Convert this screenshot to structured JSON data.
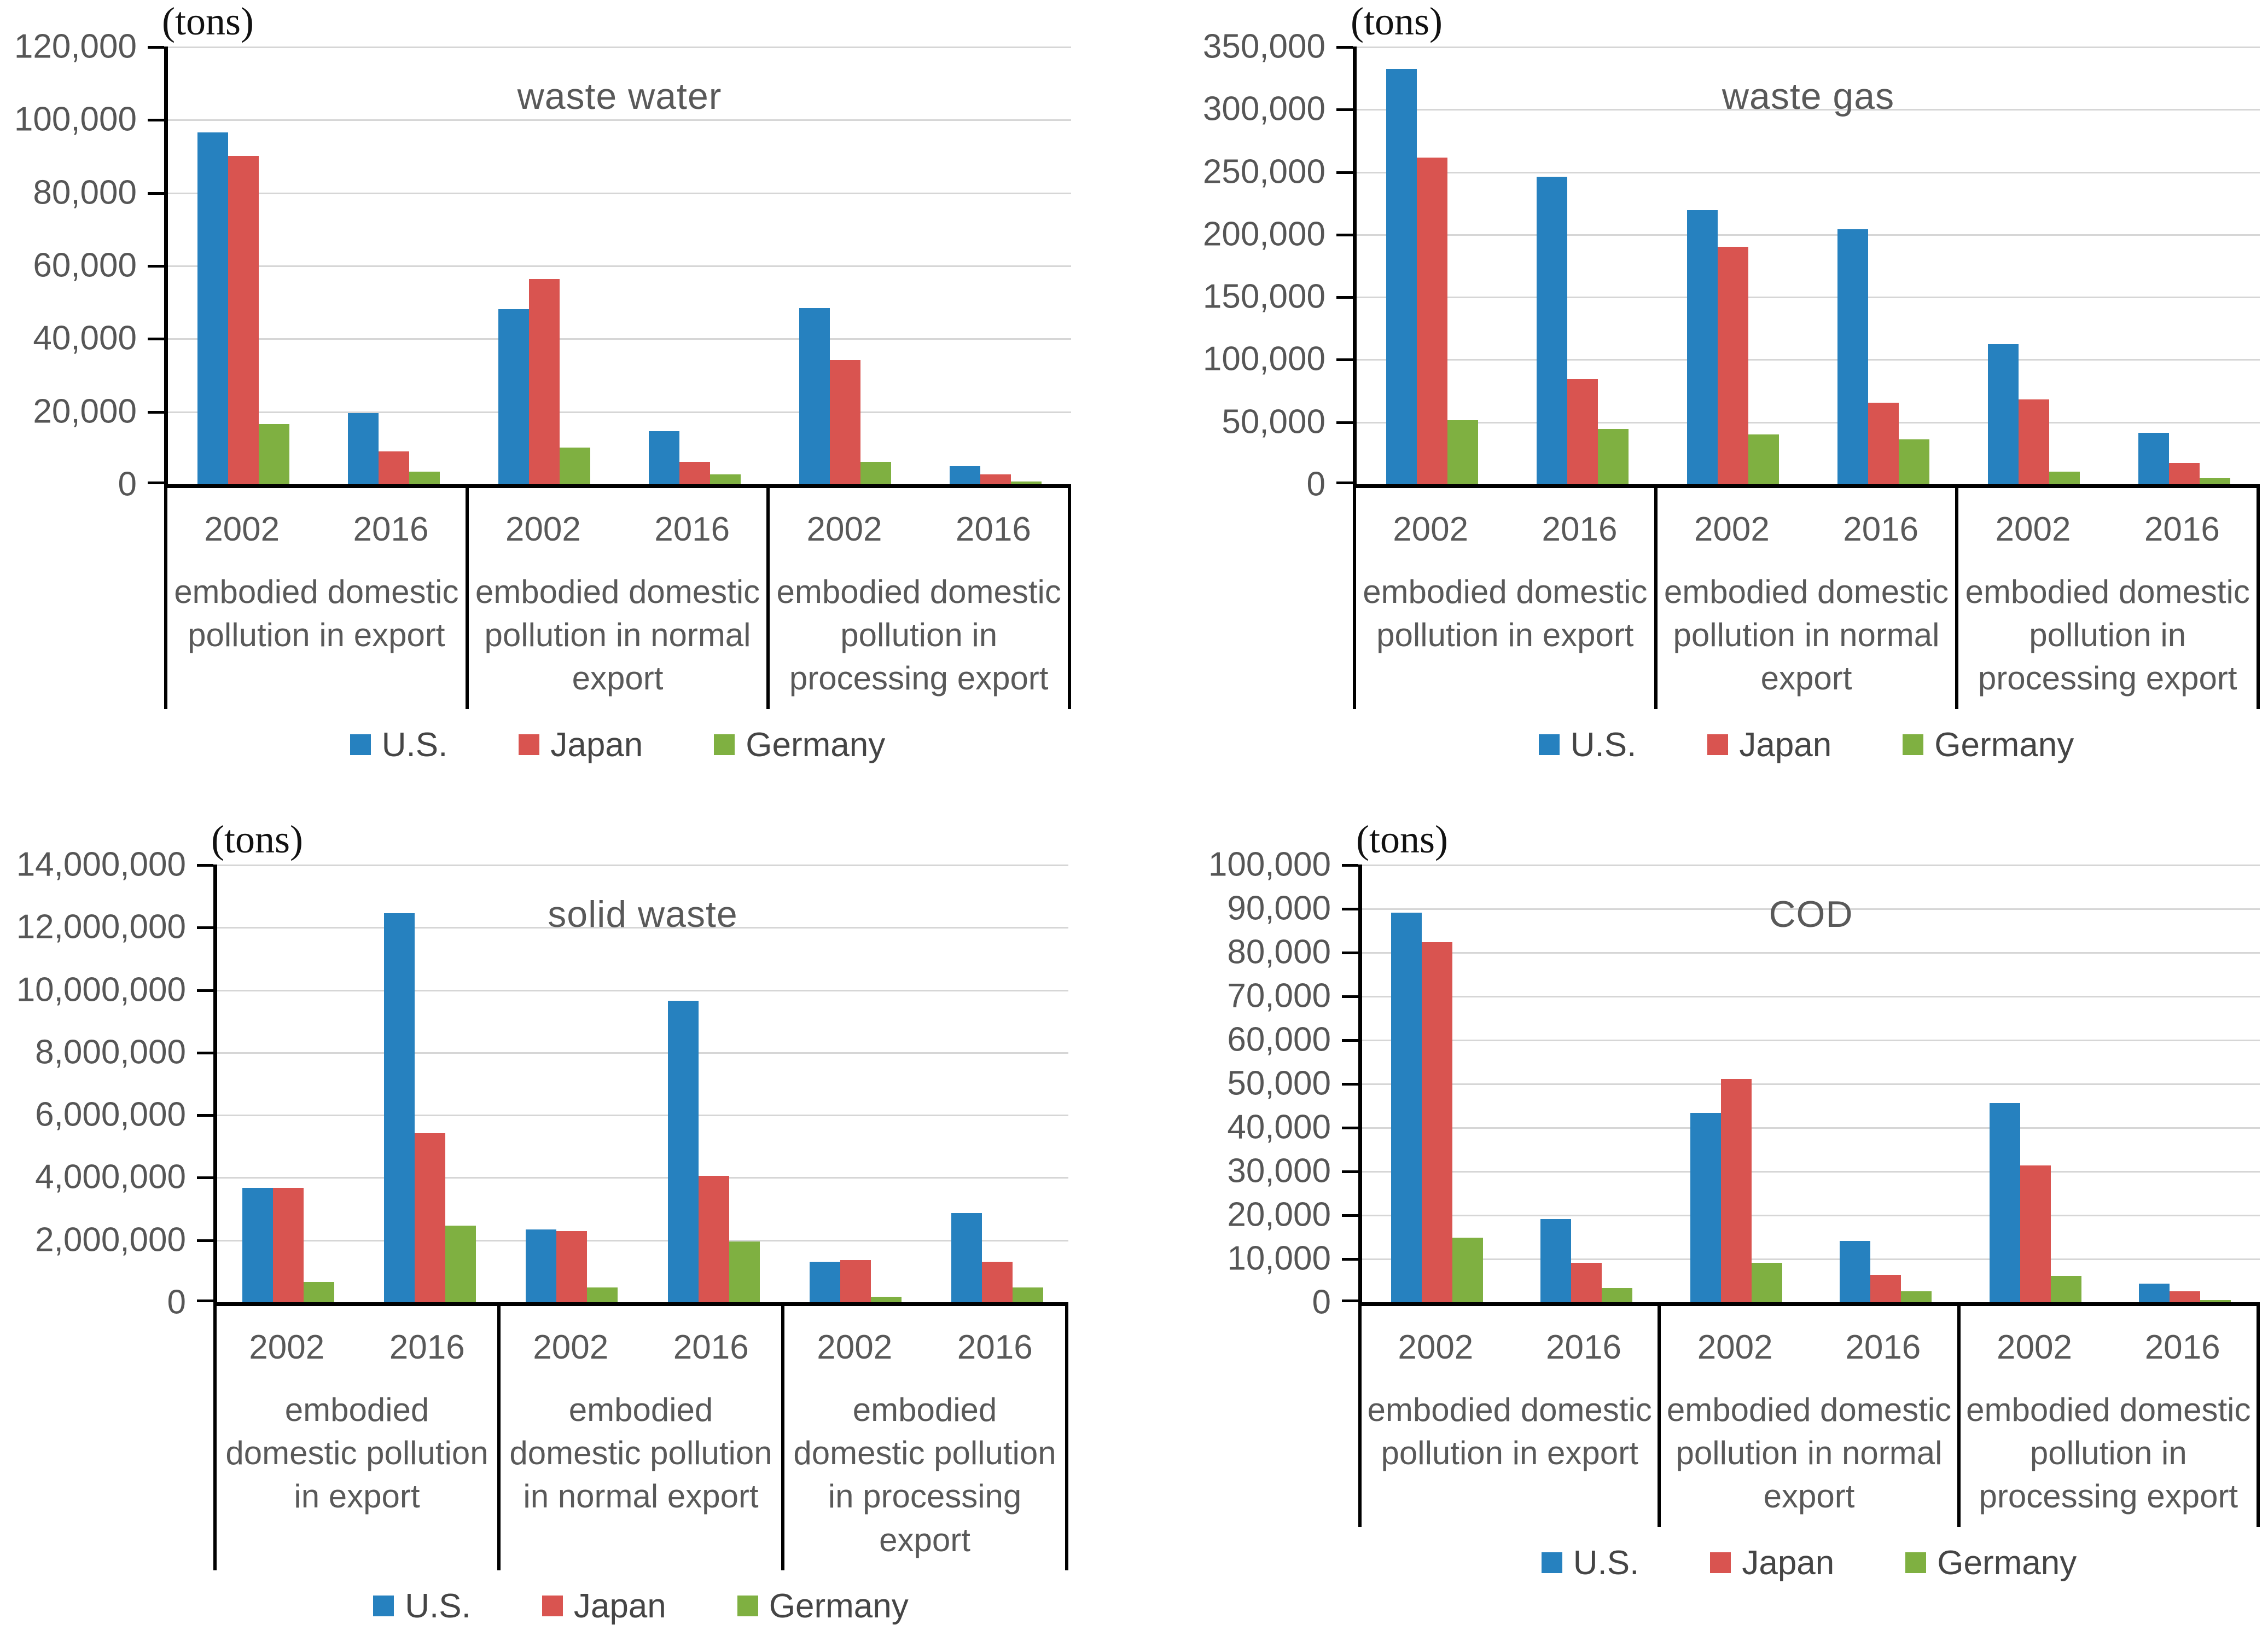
{
  "figure": {
    "background": "#ffffff",
    "colors": {
      "us_blue": "#2681BF",
      "japan_red": "#D95450",
      "germany_green": "#7FB041"
    }
  },
  "chart_data": [
    {
      "type": "bar",
      "title": "waste water",
      "unit_label": "(tons)",
      "ylim": [
        0,
        120000
      ],
      "y_ticks": [
        "0",
        "20,000",
        "40,000",
        "60,000",
        "80,000",
        "100,000",
        "120,000"
      ],
      "grid": true,
      "legend_position": "bottom",
      "categories": [
        "embodied domestic pollution in export",
        "embodied domestic pollution in normal export",
        "embodied domestic pollution in processing export"
      ],
      "years": [
        "2002",
        "2016"
      ],
      "cluster_order": [
        "export 2002",
        "export 2016",
        "normal export 2002",
        "normal export 2016",
        "processing export 2002",
        "processing export 2016"
      ],
      "series": [
        {
          "name": "U.S.",
          "color": "#2681BF",
          "values": [
            96500,
            19500,
            48000,
            14500,
            48300,
            5000
          ]
        },
        {
          "name": "Japan",
          "color": "#D95450",
          "values": [
            90000,
            9000,
            56200,
            6200,
            34000,
            2700
          ]
        },
        {
          "name": "Germany",
          "color": "#7FB041",
          "values": [
            16500,
            3500,
            10000,
            2700,
            6200,
            800
          ]
        }
      ]
    },
    {
      "type": "bar",
      "title": "waste gas",
      "unit_label": "(tons)",
      "ylim": [
        0,
        350000
      ],
      "y_ticks": [
        "0",
        "50,000",
        "100,000",
        "150,000",
        "200,000",
        "250,000",
        "300,000",
        "350,000"
      ],
      "grid": true,
      "legend_position": "bottom",
      "categories": [
        "embodied domestic pollution in export",
        "embodied domestic pollution in normal export",
        "embodied domestic pollution in processing export"
      ],
      "years": [
        "2002",
        "2016"
      ],
      "cluster_order": [
        "export 2002",
        "export 2016",
        "normal export 2002",
        "normal export 2016",
        "processing export 2002",
        "processing export 2016"
      ],
      "series": [
        {
          "name": "U.S.",
          "color": "#2681BF",
          "values": [
            332000,
            246000,
            219000,
            204000,
            112000,
            41000
          ]
        },
        {
          "name": "Japan",
          "color": "#D95450",
          "values": [
            261000,
            84000,
            190000,
            65000,
            68000,
            17000
          ]
        },
        {
          "name": "Germany",
          "color": "#7FB041",
          "values": [
            51000,
            44000,
            40000,
            36000,
            10000,
            5000
          ]
        }
      ]
    },
    {
      "type": "bar",
      "title": "solid waste",
      "unit_label": "(tons)",
      "ylim": [
        0,
        14000000
      ],
      "y_ticks": [
        "0",
        "2,000,000",
        "4,000,000",
        "6,000,000",
        "8,000,000",
        "10,000,000",
        "12,000,000",
        "14,000,000"
      ],
      "grid": true,
      "legend_position": "bottom",
      "categories": [
        "embodied domestic pollution in export",
        "embodied domestic pollution in normal export",
        "embodied domestic pollution in processing export"
      ],
      "years": [
        "2002",
        "2016"
      ],
      "cluster_order": [
        "export 2002",
        "export 2016",
        "normal export 2002",
        "normal export 2016",
        "processing export 2002",
        "processing export 2016"
      ],
      "series": [
        {
          "name": "U.S.",
          "color": "#2681BF",
          "values": [
            3650000,
            12450000,
            2320000,
            9650000,
            1300000,
            2850000
          ]
        },
        {
          "name": "Japan",
          "color": "#D95450",
          "values": [
            3650000,
            5400000,
            2270000,
            4050000,
            1350000,
            1300000
          ]
        },
        {
          "name": "Germany",
          "color": "#7FB041",
          "values": [
            650000,
            2450000,
            480000,
            1950000,
            180000,
            470000
          ]
        }
      ]
    },
    {
      "type": "bar",
      "title": "COD",
      "unit_label": "(tons)",
      "ylim": [
        0,
        100000
      ],
      "y_ticks": [
        "0",
        "10,000",
        "20,000",
        "30,000",
        "40,000",
        "50,000",
        "60,000",
        "70,000",
        "80,000",
        "90,000",
        "100,000"
      ],
      "grid": true,
      "legend_position": "bottom",
      "categories": [
        "embodied domestic pollution in export",
        "embodied domestic pollution in normal export",
        "embodied domestic pollution in processing export"
      ],
      "years": [
        "2002",
        "2016"
      ],
      "cluster_order": [
        "export 2002",
        "export 2016",
        "normal export 2002",
        "normal export 2016",
        "processing export 2002",
        "processing export 2016"
      ],
      "series": [
        {
          "name": "U.S.",
          "color": "#2681BF",
          "values": [
            89000,
            19000,
            43200,
            14000,
            45500,
            4300
          ]
        },
        {
          "name": "Japan",
          "color": "#D95450",
          "values": [
            82200,
            9000,
            51000,
            6300,
            31300,
            2500
          ]
        },
        {
          "name": "Germany",
          "color": "#7FB041",
          "values": [
            14800,
            3200,
            9000,
            2500,
            6000,
            500
          ]
        }
      ]
    }
  ]
}
